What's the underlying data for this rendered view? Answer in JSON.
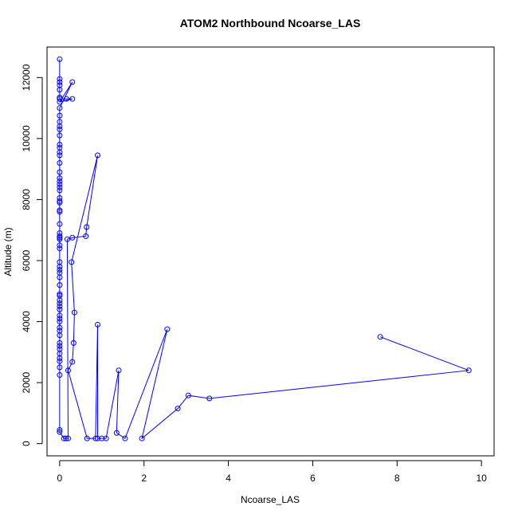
{
  "chart_data": {
    "type": "line",
    "title": "ATOM2 Northbound Ncoarse_LAS",
    "xlabel": "Ncoarse_LAS",
    "ylabel": "Altitude (m)",
    "xlim": [
      -0.3,
      10.3
    ],
    "ylim": [
      -400,
      13000
    ],
    "x_ticks": [
      0,
      2,
      4,
      6,
      8,
      10
    ],
    "y_ticks": [
      0,
      2000,
      4000,
      6000,
      8000,
      10000,
      12000
    ],
    "grid": false,
    "marker": "open-circle",
    "color": "#0000ff",
    "series": [
      {
        "points": [
          [
            0.0,
            12600
          ],
          [
            0.0,
            11950
          ],
          [
            0.0,
            11850
          ],
          [
            0.0,
            11750
          ],
          [
            0.0,
            11600
          ],
          [
            0.0,
            11350
          ],
          [
            0.0,
            11300
          ],
          [
            0.16,
            11300
          ],
          [
            0.3,
            11300
          ],
          [
            0.0,
            11200
          ],
          [
            0.3,
            11850
          ],
          [
            0.0,
            11000
          ],
          [
            0.0,
            10750
          ],
          [
            0.0,
            10550
          ],
          [
            0.0,
            10400
          ],
          [
            0.0,
            10300
          ],
          [
            0.0,
            10100
          ],
          [
            0.0,
            9800
          ],
          [
            0.0,
            9700
          ],
          [
            0.0,
            9550
          ],
          [
            0.0,
            9450
          ],
          [
            0.0,
            9200
          ],
          [
            0.0,
            8900
          ],
          [
            0.0,
            8700
          ],
          [
            0.0,
            8600
          ],
          [
            0.0,
            8500
          ],
          [
            0.0,
            8400
          ],
          [
            0.0,
            8300
          ],
          [
            0.0,
            8050
          ],
          [
            0.0,
            7950
          ],
          [
            0.0,
            7900
          ],
          [
            0.0,
            7650
          ],
          [
            0.0,
            7600
          ],
          [
            0.0,
            7200
          ],
          [
            0.0,
            6900
          ],
          [
            0.0,
            6800
          ],
          [
            0.0,
            6750
          ],
          [
            0.0,
            6700
          ],
          [
            0.0,
            6500
          ],
          [
            0.0,
            6400
          ],
          [
            0.0,
            5950
          ],
          [
            0.0,
            5800
          ],
          [
            0.0,
            5700
          ],
          [
            0.0,
            5600
          ],
          [
            0.0,
            5450
          ],
          [
            0.0,
            5200
          ],
          [
            0.0,
            4900
          ],
          [
            0.0,
            4850
          ],
          [
            0.0,
            4700
          ],
          [
            0.0,
            4600
          ],
          [
            0.0,
            4500
          ],
          [
            0.0,
            4400
          ],
          [
            0.0,
            4200
          ],
          [
            0.0,
            4100
          ],
          [
            0.0,
            4000
          ],
          [
            0.0,
            3800
          ],
          [
            0.0,
            3700
          ],
          [
            0.0,
            3550
          ],
          [
            0.0,
            3300
          ],
          [
            0.0,
            3200
          ],
          [
            0.0,
            3100
          ],
          [
            0.0,
            2950
          ],
          [
            0.0,
            2800
          ],
          [
            0.0,
            2700
          ],
          [
            0.0,
            2500
          ],
          [
            0.0,
            2250
          ],
          [
            0.0,
            450
          ],
          [
            0.0,
            380
          ],
          [
            0.1,
            170
          ],
          [
            0.15,
            170
          ],
          [
            0.2,
            170
          ],
          [
            0.18,
            6700
          ],
          [
            0.3,
            6750
          ],
          [
            0.62,
            6800
          ],
          [
            0.64,
            7100
          ],
          [
            0.9,
            9450
          ],
          [
            0.28,
            5950
          ],
          [
            0.35,
            4300
          ],
          [
            0.33,
            3300
          ],
          [
            0.3,
            2680
          ],
          [
            0.2,
            2400
          ],
          [
            0.65,
            170
          ],
          [
            0.85,
            170
          ],
          [
            0.9,
            3900
          ],
          [
            0.9,
            170
          ],
          [
            1.0,
            170
          ],
          [
            1.1,
            170
          ],
          [
            1.4,
            2400
          ],
          [
            1.35,
            350
          ],
          [
            1.55,
            170
          ],
          [
            2.55,
            3750
          ],
          [
            1.95,
            170
          ],
          [
            2.8,
            1150
          ],
          [
            3.05,
            1580
          ],
          [
            3.55,
            1480
          ],
          [
            9.7,
            2400
          ],
          [
            7.6,
            3500
          ]
        ]
      }
    ]
  }
}
